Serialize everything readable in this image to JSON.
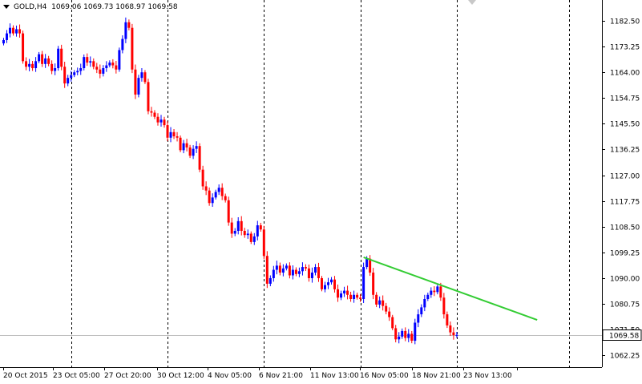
{
  "header": {
    "symbol": "GOLD,H4",
    "ohlc": "1069.06 1069.73 1068.97 1069.58"
  },
  "chart_data": {
    "type": "candlestick",
    "symbol": "GOLD",
    "timeframe": "H4",
    "ylim": [
      1058,
      1190
    ],
    "yticks": [
      1062.25,
      1071.5,
      1080.75,
      1090.0,
      1099.25,
      1108.5,
      1117.75,
      1127.0,
      1136.25,
      1145.5,
      1154.75,
      1164.0,
      1173.25,
      1182.5
    ],
    "ytick_labels": [
      "1062.25",
      "1071.50",
      "1080.75",
      "1090.00",
      "1099.25",
      "1108.50",
      "1117.75",
      "1127.00",
      "1136.25",
      "1145.50",
      "1154.75",
      "1164.00",
      "1173.25",
      "1182.50"
    ],
    "xtick_labels": [
      "20 Oct 2015",
      "23 Oct 05:00",
      "27 Oct 20:00",
      "30 Oct 12:00",
      "4 Nov 05:00",
      "6 Nov 21:00",
      "11 Nov 13:00",
      "16 Nov 05:00",
      "18 Nov 21:00",
      "23 Nov 13:00"
    ],
    "bid_line": 1069.58,
    "bid_label": "1069.58",
    "colors": {
      "bull": "#0000ff",
      "bear": "#ff0000",
      "trendline": "#33cc33",
      "axis": "#000000",
      "bid_line": "#c0c0c0"
    },
    "trendline": {
      "from": {
        "bar": 112,
        "price": 1097.5
      },
      "to": {
        "bar": 166,
        "price": 1075.0
      }
    },
    "grid": "period separators (dashed vertical)",
    "separators_at_bars": [
      21,
      51,
      81,
      111,
      141,
      176
    ],
    "closes": [
      1175.6,
      1178.0,
      1180.0,
      1178.0,
      1179.5,
      1178.0,
      1168.0,
      1166.0,
      1167.0,
      1165.5,
      1168.0,
      1170.5,
      1167.0,
      1169.0,
      1167.0,
      1164.5,
      1165.5,
      1172.5,
      1166.0,
      1160.0,
      1162.0,
      1163.0,
      1164.0,
      1164.5,
      1165.5,
      1169.5,
      1167.5,
      1168.0,
      1166.0,
      1165.0,
      1163.5,
      1165.5,
      1166.5,
      1167.5,
      1166.5,
      1165.0,
      1172.0,
      1176.0,
      1182.0,
      1180.0,
      1165.0,
      1156.0,
      1162.0,
      1164.0,
      1160.5,
      1150.0,
      1149.5,
      1148.0,
      1146.0,
      1147.0,
      1145.0,
      1140.5,
      1142.5,
      1141.0,
      1140.5,
      1136.0,
      1138.5,
      1137.0,
      1134.0,
      1136.5,
      1137.5,
      1129.0,
      1123.0,
      1121.5,
      1117.0,
      1119.0,
      1121.0,
      1122.5,
      1119.5,
      1118.0,
      1110.0,
      1106.0,
      1107.0,
      1110.5,
      1107.0,
      1105.5,
      1106.0,
      1103.0,
      1105.0,
      1109.0,
      1107.5,
      1098.0,
      1088.0,
      1090.0,
      1093.0,
      1094.5,
      1092.0,
      1093.5,
      1094.5,
      1091.0,
      1093.0,
      1091.5,
      1092.5,
      1094.0,
      1093.5,
      1090.0,
      1092.0,
      1094.0,
      1090.0,
      1086.0,
      1087.5,
      1088.5,
      1089.5,
      1086.0,
      1083.0,
      1084.5,
      1085.5,
      1084.0,
      1082.5,
      1084.0,
      1083.0,
      1082.5,
      1094.0,
      1097.0,
      1092.0,
      1084.0,
      1080.5,
      1082.0,
      1080.0,
      1078.0,
      1076.0,
      1072.0,
      1068.0,
      1069.0,
      1071.0,
      1068.5,
      1070.0,
      1067.5,
      1074.0,
      1077.0,
      1079.5,
      1082.5,
      1084.0,
      1085.5,
      1085.0,
      1087.0,
      1083.0,
      1077.0,
      1073.0,
      1070.5,
      1069.5,
      1069.58
    ]
  }
}
